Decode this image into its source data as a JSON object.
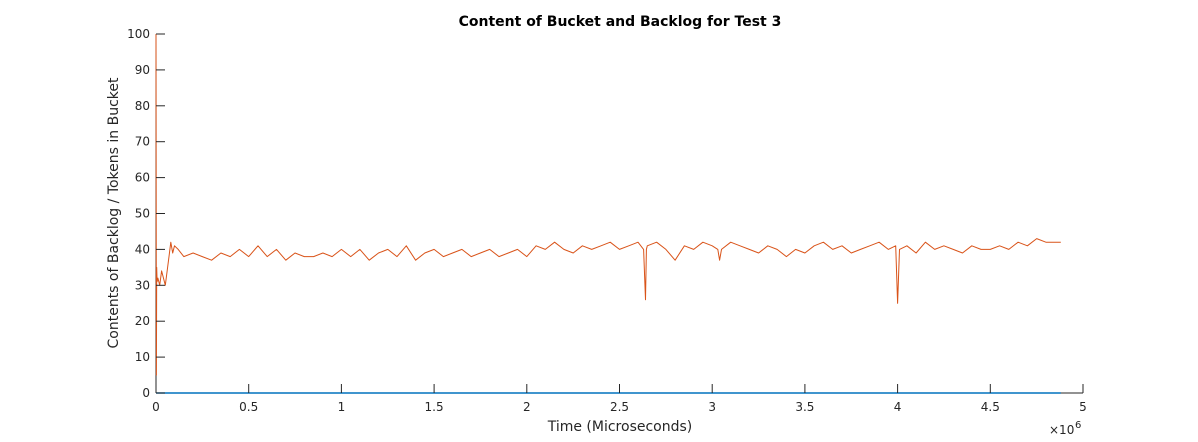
{
  "chart_data": {
    "type": "line",
    "title": "Content of Bucket and Backlog for Test 3",
    "xlabel": "Time (Microseconds)",
    "ylabel": "Contents of Backlog / Tokens in Bucket",
    "x_exponent_label": "×10",
    "x_exponent_power": "6",
    "xlim": [
      0,
      5
    ],
    "ylim": [
      0,
      100
    ],
    "xticks": [
      0,
      0.5,
      1,
      1.5,
      2,
      2.5,
      3,
      3.5,
      4,
      4.5,
      5
    ],
    "xtick_labels": [
      "0",
      "0.5",
      "1",
      "1.5",
      "2",
      "2.5",
      "3",
      "3.5",
      "4",
      "4.5",
      "5"
    ],
    "yticks": [
      0,
      10,
      20,
      30,
      40,
      50,
      60,
      70,
      80,
      90,
      100
    ],
    "ytick_labels": [
      "0",
      "10",
      "20",
      "30",
      "40",
      "50",
      "60",
      "70",
      "80",
      "90",
      "100"
    ],
    "grid": false,
    "series": [
      {
        "color": "#0072BD",
        "x": [
          0,
          4.88
        ],
        "y": [
          0,
          0
        ]
      },
      {
        "color": "#D95319",
        "x": [
          0,
          0.002,
          0.004,
          0.006,
          0.01,
          0.02,
          0.03,
          0.05,
          0.07,
          0.08,
          0.09,
          0.1,
          0.12,
          0.15,
          0.2,
          0.25,
          0.3,
          0.35,
          0.4,
          0.45,
          0.5,
          0.55,
          0.6,
          0.65,
          0.7,
          0.75,
          0.8,
          0.85,
          0.9,
          0.95,
          1.0,
          1.05,
          1.1,
          1.15,
          1.2,
          1.25,
          1.3,
          1.35,
          1.4,
          1.45,
          1.5,
          1.55,
          1.6,
          1.65,
          1.7,
          1.75,
          1.8,
          1.85,
          1.9,
          1.95,
          2.0,
          2.05,
          2.1,
          2.15,
          2.2,
          2.25,
          2.3,
          2.35,
          2.4,
          2.45,
          2.5,
          2.55,
          2.6,
          2.63,
          2.64,
          2.645,
          2.65,
          2.7,
          2.75,
          2.8,
          2.85,
          2.9,
          2.95,
          3.0,
          3.03,
          3.04,
          3.05,
          3.1,
          3.15,
          3.2,
          3.25,
          3.3,
          3.35,
          3.4,
          3.45,
          3.5,
          3.55,
          3.6,
          3.65,
          3.7,
          3.75,
          3.8,
          3.85,
          3.9,
          3.95,
          3.99,
          4.0,
          4.01,
          4.05,
          4.1,
          4.15,
          4.2,
          4.25,
          4.3,
          4.35,
          4.4,
          4.45,
          4.5,
          4.55,
          4.6,
          4.65,
          4.7,
          4.75,
          4.8,
          4.82,
          4.85,
          4.88
        ],
        "y": [
          100,
          5,
          35,
          31,
          32,
          30,
          34,
          30,
          38,
          42,
          39,
          41,
          40,
          38,
          39,
          38,
          37,
          39,
          38,
          40,
          38,
          41,
          38,
          40,
          37,
          39,
          38,
          38,
          39,
          38,
          40,
          38,
          40,
          37,
          39,
          40,
          38,
          41,
          37,
          39,
          40,
          38,
          39,
          40,
          38,
          39,
          40,
          38,
          39,
          40,
          38,
          41,
          40,
          42,
          40,
          39,
          41,
          40,
          41,
          42,
          40,
          41,
          42,
          40,
          26,
          40,
          41,
          42,
          40,
          37,
          41,
          40,
          42,
          41,
          40,
          37,
          40,
          42,
          41,
          40,
          39,
          41,
          40,
          38,
          40,
          39,
          41,
          42,
          40,
          41,
          39,
          40,
          41,
          42,
          40,
          41,
          25,
          40,
          41,
          39,
          42,
          40,
          41,
          40,
          39,
          41,
          40,
          40,
          41,
          40,
          42,
          41,
          43,
          42,
          42,
          42,
          42
        ]
      }
    ]
  }
}
